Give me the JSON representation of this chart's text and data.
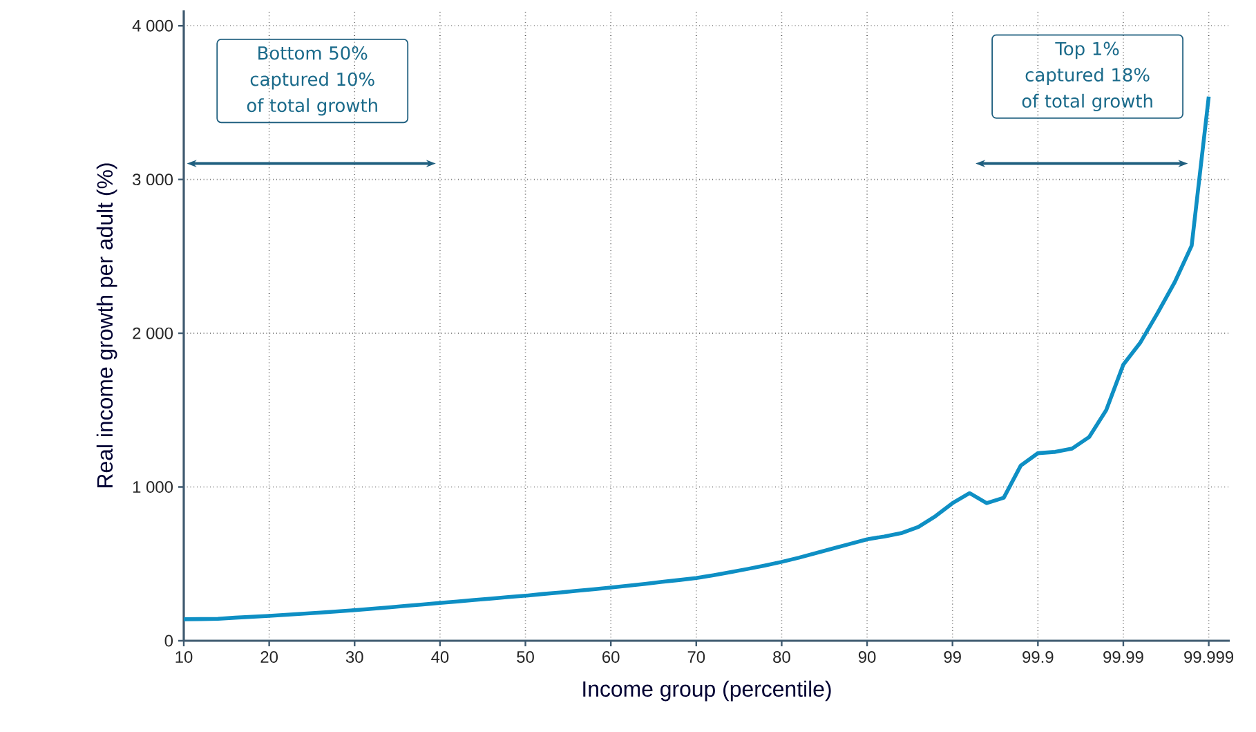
{
  "chart_data": {
    "type": "line",
    "xlabel": "Income group (percentile)",
    "ylabel": "Real income growth per adult (%)",
    "categories": [
      "10",
      null,
      null,
      null,
      null,
      "20",
      null,
      null,
      null,
      null,
      "30",
      null,
      null,
      null,
      null,
      "40",
      null,
      null,
      null,
      null,
      "50",
      null,
      null,
      null,
      null,
      "60",
      null,
      null,
      null,
      null,
      "70",
      null,
      null,
      null,
      null,
      "80",
      null,
      null,
      null,
      null,
      "90",
      null,
      null,
      null,
      null,
      "99",
      null,
      null,
      null,
      null,
      "99.9",
      null,
      null,
      null,
      null,
      "99.99",
      null,
      null,
      null,
      null,
      "99.999"
    ],
    "series": [
      {
        "color": "#0e8fc4",
        "values": [
          140,
          141,
          143,
          150,
          156,
          162,
          169,
          176,
          183,
          191,
          199,
          208,
          217,
          227,
          236,
          246,
          255,
          265,
          274,
          284,
          293,
          304,
          314,
          325,
          335,
          346,
          358,
          370,
          383,
          395,
          408,
          426,
          446,
          467,
          489,
          513,
          540,
          570,
          600,
          630,
          660,
          678,
          700,
          740,
          810,
          895,
          960,
          895,
          930,
          1140,
          1220,
          1228,
          1250,
          1325,
          1500,
          1796,
          1940,
          2130,
          2330,
          2570,
          3539
        ]
      }
    ],
    "ylim": [
      0,
      4100
    ],
    "yticks": [
      0,
      {
        "value": 1000,
        "label": "1 000"
      },
      {
        "value": 2000,
        "label": "2 000"
      },
      {
        "value": 3000,
        "label": "3 000"
      },
      {
        "value": 4000,
        "label": "4 000"
      }
    ],
    "grid": true,
    "annotations": [
      "Bottom 50% captured 10% of total growth",
      "Top 1% captured 18% of total growth"
    ]
  }
}
